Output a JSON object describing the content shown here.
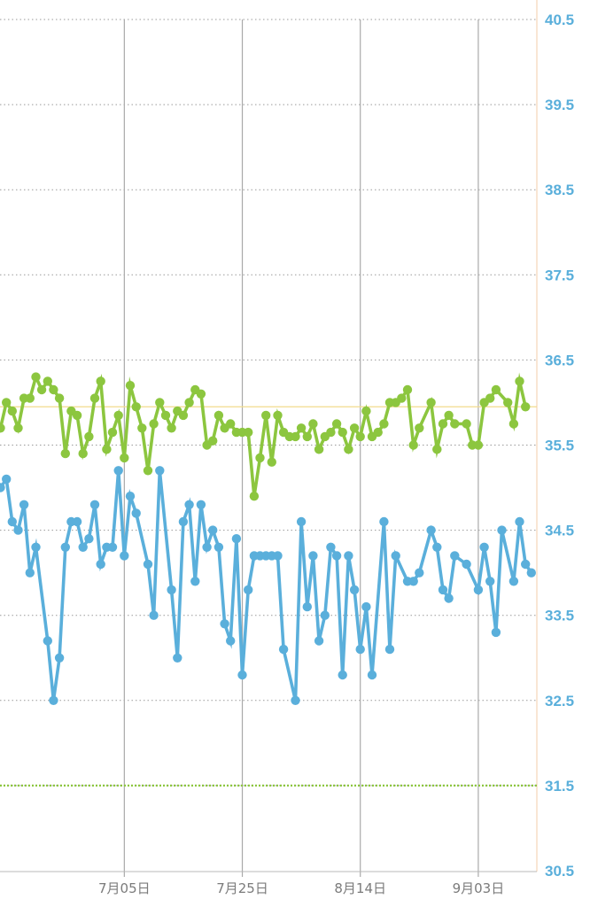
{
  "chart_data": {
    "type": "line",
    "y_axis": {
      "range": [
        30.5,
        40.5
      ],
      "position": "right",
      "tick_labels": [
        "30.5",
        "31.5",
        "32.5",
        "33.5",
        "34.5",
        "35.5",
        "36.5",
        "37.5",
        "38.5",
        "39.5",
        "40.5"
      ],
      "tick_values": [
        30.5,
        31.5,
        32.5,
        33.5,
        34.5,
        35.5,
        36.5,
        37.5,
        38.5,
        39.5,
        40.5
      ],
      "color": "#5aafdb",
      "gridlines": "dotted"
    },
    "x_axis": {
      "range": [
        "2024-06-14",
        "2024-09-13"
      ],
      "tick_dates": [
        "2024-07-05",
        "2024-07-25",
        "2024-08-14",
        "2024-09-03"
      ],
      "tick_labels": [
        "7月05日",
        "7月25日",
        "8月14日",
        "9月03日"
      ],
      "gridlines": "solid"
    },
    "reference_lines": [
      {
        "value": 35.95,
        "style": "solid",
        "color": "#f2dc8c"
      },
      {
        "value": 31.5,
        "style": "dotted",
        "color": "#8cc63f"
      }
    ],
    "series": [
      {
        "color": "#8cc63f",
        "points": [
          [
            "2024-06-14",
            35.7
          ],
          [
            "2024-06-15",
            36.0
          ],
          [
            "2024-06-16",
            35.9
          ],
          [
            "2024-06-17",
            35.7
          ],
          [
            "2024-06-18",
            36.05
          ],
          [
            "2024-06-19",
            36.05
          ],
          [
            "2024-06-20",
            36.3
          ],
          [
            "2024-06-21",
            36.15
          ],
          [
            "2024-06-22",
            36.25
          ],
          [
            "2024-06-23",
            36.15
          ],
          [
            "2024-06-24",
            36.05
          ],
          [
            "2024-06-25",
            35.4
          ],
          [
            "2024-06-26",
            35.9
          ],
          [
            "2024-06-27",
            35.85
          ],
          [
            "2024-06-28",
            35.4
          ],
          [
            "2024-06-29",
            35.6
          ],
          [
            "2024-06-30",
            36.05
          ],
          [
            "2024-07-01",
            36.25
          ],
          [
            "2024-07-02",
            35.45
          ],
          [
            "2024-07-03",
            35.65
          ],
          [
            "2024-07-04",
            35.85
          ],
          [
            "2024-07-05",
            35.35
          ],
          [
            "2024-07-06",
            36.2
          ],
          [
            "2024-07-07",
            35.95
          ],
          [
            "2024-07-08",
            35.7
          ],
          [
            "2024-07-09",
            35.2
          ],
          [
            "2024-07-10",
            35.75
          ],
          [
            "2024-07-11",
            36.0
          ],
          [
            "2024-07-12",
            35.85
          ],
          [
            "2024-07-13",
            35.7
          ],
          [
            "2024-07-14",
            35.9
          ],
          [
            "2024-07-15",
            35.85
          ],
          [
            "2024-07-16",
            36.0
          ],
          [
            "2024-07-17",
            36.15
          ],
          [
            "2024-07-18",
            36.1
          ],
          [
            "2024-07-19",
            35.5
          ],
          [
            "2024-07-20",
            35.55
          ],
          [
            "2024-07-21",
            35.85
          ],
          [
            "2024-07-22",
            35.7
          ],
          [
            "2024-07-23",
            35.75
          ],
          [
            "2024-07-24",
            35.65
          ],
          [
            "2024-07-25",
            35.65
          ],
          [
            "2024-07-26",
            35.65
          ],
          [
            "2024-07-27",
            34.9
          ],
          [
            "2024-07-28",
            35.35
          ],
          [
            "2024-07-29",
            35.85
          ],
          [
            "2024-07-30",
            35.3
          ],
          [
            "2024-07-31",
            35.85
          ],
          [
            "2024-08-01",
            35.65
          ],
          [
            "2024-08-02",
            35.6
          ],
          [
            "2024-08-03",
            35.6
          ],
          [
            "2024-08-04",
            35.7
          ],
          [
            "2024-08-05",
            35.6
          ],
          [
            "2024-08-06",
            35.75
          ],
          [
            "2024-08-07",
            35.45
          ],
          [
            "2024-08-08",
            35.6
          ],
          [
            "2024-08-09",
            35.65
          ],
          [
            "2024-08-10",
            35.75
          ],
          [
            "2024-08-11",
            35.65
          ],
          [
            "2024-08-12",
            35.45
          ],
          [
            "2024-08-13",
            35.7
          ],
          [
            "2024-08-14",
            35.6
          ],
          [
            "2024-08-15",
            35.9
          ],
          [
            "2024-08-16",
            35.6
          ],
          [
            "2024-08-17",
            35.65
          ],
          [
            "2024-08-18",
            35.75
          ],
          [
            "2024-08-19",
            36.0
          ],
          [
            "2024-08-20",
            36.0
          ],
          [
            "2024-08-21",
            36.05
          ],
          [
            "2024-08-22",
            36.15
          ],
          [
            "2024-08-23",
            35.5
          ],
          [
            "2024-08-24",
            35.7
          ],
          [
            "2024-08-26",
            36.0
          ],
          [
            "2024-08-27",
            35.45
          ],
          [
            "2024-08-28",
            35.75
          ],
          [
            "2024-08-29",
            35.85
          ],
          [
            "2024-08-30",
            35.75
          ],
          [
            "2024-09-01",
            35.75
          ],
          [
            "2024-09-02",
            35.5
          ],
          [
            "2024-09-03",
            35.5
          ],
          [
            "2024-09-04",
            36.0
          ],
          [
            "2024-09-05",
            36.05
          ],
          [
            "2024-09-06",
            36.15
          ],
          [
            "2024-09-08",
            36.0
          ],
          [
            "2024-09-09",
            35.75
          ],
          [
            "2024-09-10",
            36.25
          ],
          [
            "2024-09-11",
            35.95
          ]
        ]
      },
      {
        "color": "#5aafdb",
        "points": [
          [
            "2024-06-14",
            35.0
          ],
          [
            "2024-06-15",
            35.1
          ],
          [
            "2024-06-16",
            34.6
          ],
          [
            "2024-06-17",
            34.5
          ],
          [
            "2024-06-18",
            34.8
          ],
          [
            "2024-06-19",
            34.0
          ],
          [
            "2024-06-20",
            34.3
          ],
          [
            "2024-06-22",
            33.2
          ],
          [
            "2024-06-23",
            32.5
          ],
          [
            "2024-06-24",
            33.0
          ],
          [
            "2024-06-25",
            34.3
          ],
          [
            "2024-06-26",
            34.6
          ],
          [
            "2024-06-27",
            34.6
          ],
          [
            "2024-06-28",
            34.3
          ],
          [
            "2024-06-29",
            34.4
          ],
          [
            "2024-06-30",
            34.8
          ],
          [
            "2024-07-01",
            34.1
          ],
          [
            "2024-07-02",
            34.3
          ],
          [
            "2024-07-03",
            34.3
          ],
          [
            "2024-07-04",
            35.2
          ],
          [
            "2024-07-05",
            34.2
          ],
          [
            "2024-07-06",
            34.9
          ],
          [
            "2024-07-07",
            34.7
          ],
          [
            "2024-07-09",
            34.1
          ],
          [
            "2024-07-10",
            33.5
          ],
          [
            "2024-07-11",
            35.2
          ],
          [
            "2024-07-13",
            33.8
          ],
          [
            "2024-07-14",
            33.0
          ],
          [
            "2024-07-15",
            34.6
          ],
          [
            "2024-07-16",
            34.8
          ],
          [
            "2024-07-17",
            33.9
          ],
          [
            "2024-07-18",
            34.8
          ],
          [
            "2024-07-19",
            34.3
          ],
          [
            "2024-07-20",
            34.5
          ],
          [
            "2024-07-21",
            34.3
          ],
          [
            "2024-07-22",
            33.4
          ],
          [
            "2024-07-23",
            33.2
          ],
          [
            "2024-07-24",
            34.4
          ],
          [
            "2024-07-25",
            32.8
          ],
          [
            "2024-07-26",
            33.8
          ],
          [
            "2024-07-27",
            34.2
          ],
          [
            "2024-07-28",
            34.2
          ],
          [
            "2024-07-29",
            34.2
          ],
          [
            "2024-07-30",
            34.2
          ],
          [
            "2024-07-31",
            34.2
          ],
          [
            "2024-08-01",
            33.1
          ],
          [
            "2024-08-03",
            32.5
          ],
          [
            "2024-08-04",
            34.6
          ],
          [
            "2024-08-05",
            33.6
          ],
          [
            "2024-08-06",
            34.2
          ],
          [
            "2024-08-07",
            33.2
          ],
          [
            "2024-08-08",
            33.5
          ],
          [
            "2024-08-09",
            34.3
          ],
          [
            "2024-08-10",
            34.2
          ],
          [
            "2024-08-11",
            32.8
          ],
          [
            "2024-08-12",
            34.2
          ],
          [
            "2024-08-13",
            33.8
          ],
          [
            "2024-08-14",
            33.1
          ],
          [
            "2024-08-15",
            33.6
          ],
          [
            "2024-08-16",
            32.8
          ],
          [
            "2024-08-18",
            34.6
          ],
          [
            "2024-08-19",
            33.1
          ],
          [
            "2024-08-20",
            34.2
          ],
          [
            "2024-08-22",
            33.9
          ],
          [
            "2024-08-23",
            33.9
          ],
          [
            "2024-08-24",
            34.0
          ],
          [
            "2024-08-26",
            34.5
          ],
          [
            "2024-08-27",
            34.3
          ],
          [
            "2024-08-28",
            33.8
          ],
          [
            "2024-08-29",
            33.7
          ],
          [
            "2024-08-30",
            34.2
          ],
          [
            "2024-09-01",
            34.1
          ],
          [
            "2024-09-03",
            33.8
          ],
          [
            "2024-09-04",
            34.3
          ],
          [
            "2024-09-05",
            33.9
          ],
          [
            "2024-09-06",
            33.3
          ],
          [
            "2024-09-07",
            34.5
          ],
          [
            "2024-09-09",
            33.9
          ],
          [
            "2024-09-10",
            34.6
          ],
          [
            "2024-09-11",
            34.1
          ],
          [
            "2024-09-12",
            34.0
          ]
        ]
      }
    ]
  }
}
